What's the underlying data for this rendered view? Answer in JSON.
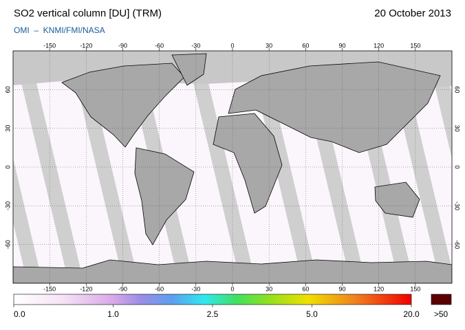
{
  "map": {
    "title": "SO2 vertical column [DU] (TRM)",
    "date": "20 October 2013",
    "source": "OMI  –  KNMI/FMI/NASA",
    "lon_ticks": [
      -150,
      -120,
      -90,
      -60,
      -30,
      0,
      30,
      60,
      90,
      120,
      150
    ],
    "lat_ticks": [
      60,
      30,
      0,
      -30,
      -60
    ],
    "colorbar": {
      "ticks": [
        {
          "value": 0,
          "label": "0.0"
        },
        {
          "value": 1,
          "label": "1.0"
        },
        {
          "value": 2.5,
          "label": "2.5"
        },
        {
          "value": 5,
          "label": "5.0"
        },
        {
          "value": 20,
          "label": "20.0"
        }
      ],
      "overflow": ">50"
    }
  }
}
